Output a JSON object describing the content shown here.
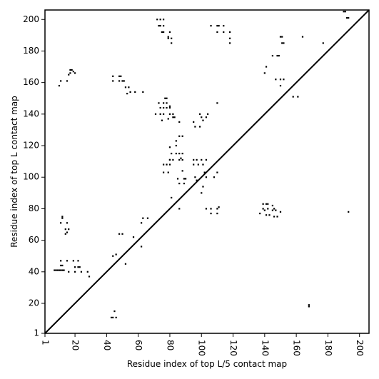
{
  "chart_data": {
    "type": "heatmap",
    "title": "",
    "xlabel": "Residue index of top L/5 contact map",
    "ylabel": "Residue index of top L contact map",
    "xlim": [
      1,
      206
    ],
    "ylim": [
      1,
      206
    ],
    "x_ticks": [
      "1",
      "20",
      "40",
      "60",
      "80",
      "100",
      "120",
      "140",
      "160",
      "180",
      "200"
    ],
    "y_ticks": [
      "1",
      "20",
      "40",
      "60",
      "80",
      "100",
      "120",
      "140",
      "160",
      "180",
      "200"
    ],
    "x_tick_values": [
      1,
      20,
      40,
      60,
      80,
      100,
      120,
      140,
      160,
      180,
      200
    ],
    "y_tick_values": [
      1,
      20,
      40,
      60,
      80,
      100,
      120,
      140,
      160,
      180,
      200
    ],
    "x_tick_rotation": -90,
    "diagonal": true,
    "grid": false,
    "mark_color": "#000000",
    "upper_contacts": [
      [
        190,
        205
      ],
      [
        191,
        205
      ],
      [
        192,
        201
      ],
      [
        193,
        201
      ],
      [
        164,
        189
      ],
      [
        150,
        189
      ],
      [
        151,
        189
      ],
      [
        152,
        185
      ],
      [
        151,
        185
      ],
      [
        149,
        177
      ],
      [
        148,
        177
      ],
      [
        145,
        177
      ],
      [
        140,
        166
      ],
      [
        141,
        170
      ],
      [
        147,
        162
      ],
      [
        150,
        162
      ],
      [
        152,
        162
      ],
      [
        150,
        158
      ],
      [
        158,
        151
      ],
      [
        161,
        151
      ],
      [
        177,
        185
      ],
      [
        118,
        185
      ],
      [
        118,
        188
      ],
      [
        118,
        192
      ],
      [
        114,
        192
      ],
      [
        110,
        192
      ],
      [
        106,
        196
      ],
      [
        110,
        196
      ],
      [
        111,
        196
      ],
      [
        114,
        196
      ],
      [
        81,
        185
      ],
      [
        81,
        188
      ],
      [
        79,
        188
      ],
      [
        79,
        189
      ],
      [
        80,
        192
      ],
      [
        76,
        192
      ],
      [
        75,
        192
      ],
      [
        74,
        196
      ],
      [
        73,
        196
      ],
      [
        72,
        200
      ],
      [
        74,
        200
      ],
      [
        76,
        196
      ],
      [
        76,
        200
      ]
    ],
    "lower_contacts": [
      [
        7,
        41
      ],
      [
        8,
        41
      ],
      [
        9,
        41
      ],
      [
        10,
        41
      ],
      [
        11,
        41
      ],
      [
        12,
        41
      ],
      [
        13,
        41
      ],
      [
        11,
        44
      ],
      [
        12,
        44
      ],
      [
        11,
        47
      ],
      [
        15,
        47
      ],
      [
        19,
        47
      ],
      [
        22,
        47
      ],
      [
        20,
        43
      ],
      [
        22,
        43
      ],
      [
        23,
        43
      ],
      [
        16,
        40
      ],
      [
        20,
        40
      ],
      [
        24,
        40
      ],
      [
        28,
        40
      ],
      [
        29,
        37
      ],
      [
        12,
        75
      ],
      [
        12,
        74
      ],
      [
        11,
        71
      ],
      [
        15,
        71
      ],
      [
        14,
        67
      ],
      [
        15,
        65
      ],
      [
        14,
        64
      ],
      [
        16,
        67
      ],
      [
        16,
        165
      ],
      [
        17,
        166
      ],
      [
        17,
        168
      ],
      [
        18,
        168
      ],
      [
        19,
        167
      ],
      [
        20,
        166
      ],
      [
        15,
        161
      ],
      [
        10,
        158
      ],
      [
        11,
        161
      ],
      [
        44,
        161
      ],
      [
        48,
        161
      ],
      [
        50,
        161
      ],
      [
        44,
        164
      ],
      [
        48,
        164
      ],
      [
        49,
        164
      ],
      [
        51,
        161
      ],
      [
        52,
        157
      ],
      [
        54,
        157
      ],
      [
        55,
        154
      ],
      [
        58,
        154
      ],
      [
        53,
        153
      ],
      [
        63,
        154
      ],
      [
        48,
        64
      ],
      [
        50,
        64
      ],
      [
        44,
        50
      ],
      [
        46,
        51
      ],
      [
        52,
        45
      ],
      [
        57,
        62
      ],
      [
        62,
        56
      ],
      [
        63,
        74
      ],
      [
        66,
        74
      ],
      [
        62,
        71
      ],
      [
        43,
        11
      ],
      [
        44,
        11
      ],
      [
        45,
        15
      ],
      [
        46,
        11
      ],
      [
        73,
        147
      ],
      [
        76,
        147
      ],
      [
        78,
        147
      ],
      [
        74,
        144
      ],
      [
        76,
        144
      ],
      [
        78,
        144
      ],
      [
        80,
        144
      ],
      [
        74,
        140
      ],
      [
        76,
        140
      ],
      [
        80,
        140
      ],
      [
        82,
        140
      ],
      [
        82,
        138
      ],
      [
        83,
        138
      ],
      [
        79,
        137
      ],
      [
        75,
        136
      ],
      [
        77,
        150
      ],
      [
        78,
        150
      ],
      [
        71,
        140
      ],
      [
        80,
        145
      ],
      [
        86,
        135
      ],
      [
        95,
        135
      ],
      [
        96,
        132
      ],
      [
        99,
        132
      ],
      [
        100,
        138
      ],
      [
        103,
        138
      ],
      [
        101,
        136
      ],
      [
        99,
        140
      ],
      [
        104,
        140
      ],
      [
        86,
        126
      ],
      [
        88,
        126
      ],
      [
        84,
        123
      ],
      [
        84,
        120
      ],
      [
        80,
        119
      ],
      [
        81,
        115
      ],
      [
        84,
        115
      ],
      [
        86,
        115
      ],
      [
        87,
        112
      ],
      [
        88,
        115
      ],
      [
        80,
        111
      ],
      [
        82,
        111
      ],
      [
        86,
        111
      ],
      [
        88,
        111
      ],
      [
        76,
        108
      ],
      [
        78,
        108
      ],
      [
        80,
        108
      ],
      [
        76,
        103
      ],
      [
        79,
        103
      ],
      [
        80,
        111
      ],
      [
        95,
        111
      ],
      [
        97,
        111
      ],
      [
        100,
        111
      ],
      [
        103,
        111
      ],
      [
        95,
        108
      ],
      [
        98,
        108
      ],
      [
        101,
        108
      ],
      [
        97,
        98
      ],
      [
        96,
        100
      ],
      [
        103,
        100
      ],
      [
        102,
        103
      ],
      [
        108,
        100
      ],
      [
        110,
        103
      ],
      [
        85,
        99
      ],
      [
        89,
        99
      ],
      [
        90,
        99
      ],
      [
        86,
        96
      ],
      [
        89,
        96
      ],
      [
        100,
        90
      ],
      [
        101,
        94
      ],
      [
        81,
        87
      ],
      [
        86,
        80
      ],
      [
        103,
        80
      ],
      [
        106,
        80
      ],
      [
        110,
        80
      ],
      [
        111,
        81
      ],
      [
        106,
        77
      ],
      [
        110,
        77
      ],
      [
        110,
        147
      ],
      [
        88,
        104
      ],
      [
        139,
        83
      ],
      [
        139,
        80
      ],
      [
        141,
        83
      ],
      [
        142,
        83
      ],
      [
        140,
        79
      ],
      [
        142,
        80
      ],
      [
        145,
        79
      ],
      [
        146,
        80
      ],
      [
        147,
        79
      ],
      [
        150,
        78
      ],
      [
        145,
        82
      ],
      [
        141,
        76
      ],
      [
        143,
        76
      ],
      [
        146,
        75
      ],
      [
        148,
        75
      ],
      [
        137,
        77
      ],
      [
        193,
        78
      ],
      [
        168,
        19
      ],
      [
        168,
        18
      ]
    ]
  }
}
